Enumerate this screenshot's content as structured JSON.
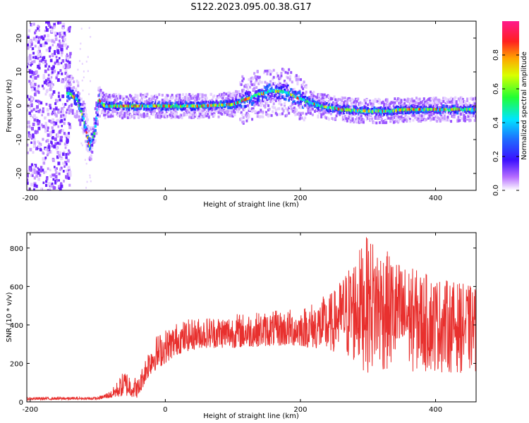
{
  "title": "S122.2023.095.00.38.G17",
  "colors": {
    "spectrum_purple": "#7b22f2",
    "spectrum_blue": "#1f3cff",
    "snr_line": "#e8302e",
    "axis": "#000000"
  },
  "chart_data": [
    {
      "type": "heatmap",
      "xlabel": "Height of straight line (km)",
      "ylabel": "Frequency (Hz)",
      "xlim": [
        -205,
        460
      ],
      "ylim": [
        -25,
        25
      ],
      "x_ticks": [
        -200,
        0,
        200,
        400
      ],
      "y_ticks": [
        -20,
        -10,
        0,
        10,
        20
      ],
      "colorbar": {
        "label": "Normalized spectral amplitude",
        "range": [
          0,
          1
        ],
        "ticks": [
          "0.0",
          "0.2",
          "0.4",
          "0.6",
          "0.8"
        ]
      },
      "dominant_frequency_trace": {
        "x": [
          -145,
          -130,
          -120,
          -112,
          -105,
          -98,
          -90,
          -80,
          -50,
          0,
          50,
          100,
          120,
          140,
          160,
          180,
          200,
          230,
          260,
          300,
          330,
          360,
          400,
          460
        ],
        "y": [
          4,
          2,
          -4,
          -12,
          -8,
          2,
          0,
          0,
          0,
          0,
          0,
          0.5,
          2,
          3.5,
          4.5,
          4,
          2,
          0,
          -1,
          -1.5,
          -1.5,
          -1,
          -1,
          -1
        ]
      }
    },
    {
      "type": "line",
      "xlabel": "Height of straight line (km)",
      "ylabel": "SNR (10 * v/v)",
      "xlim": [
        -205,
        460
      ],
      "ylim": [
        0,
        880
      ],
      "x_ticks": [
        -200,
        0,
        200,
        400
      ],
      "y_ticks": [
        0,
        200,
        400,
        600,
        800
      ],
      "envelope": {
        "x": [
          -205,
          -100,
          -80,
          -60,
          -40,
          -30,
          -20,
          0,
          20,
          50,
          100,
          150,
          200,
          250,
          270,
          300,
          350,
          400,
          460
        ],
        "base": [
          10,
          12,
          20,
          30,
          20,
          100,
          150,
          200,
          250,
          280,
          280,
          290,
          290,
          260,
          200,
          150,
          150,
          150,
          150
        ],
        "peak": [
          25,
          25,
          60,
          170,
          120,
          230,
          330,
          380,
          420,
          440,
          460,
          470,
          490,
          580,
          700,
          870,
          720,
          650,
          600
        ]
      }
    }
  ]
}
